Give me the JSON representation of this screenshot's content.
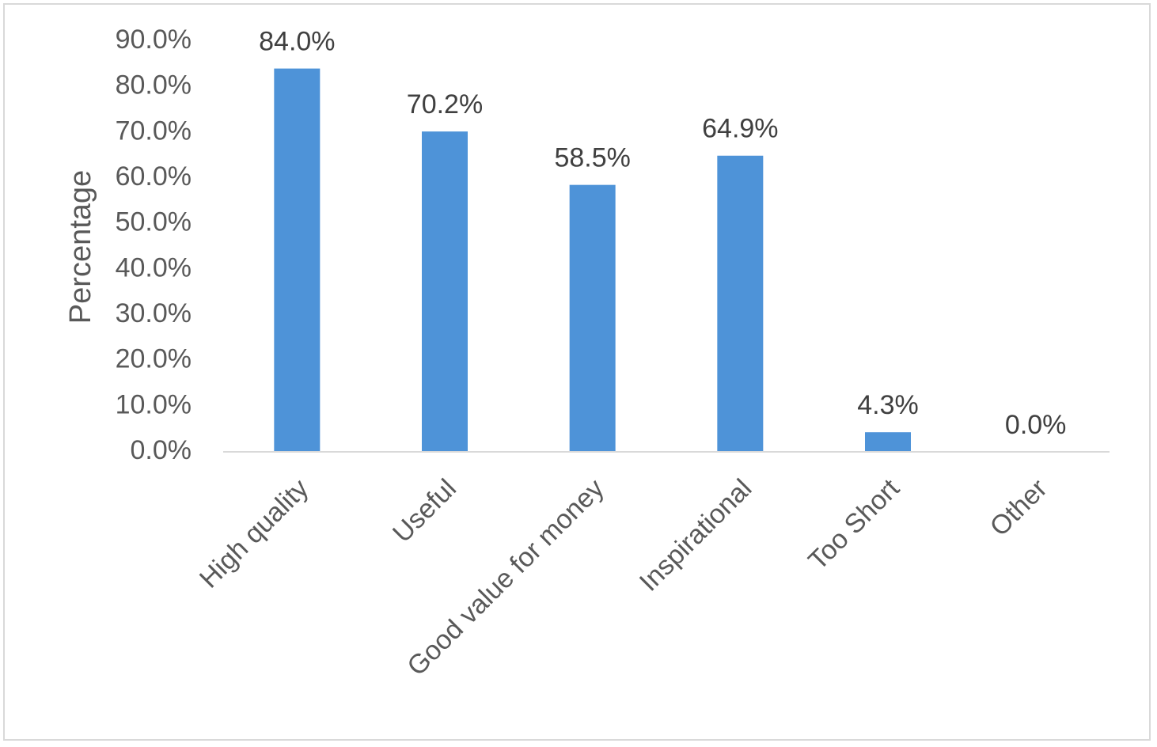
{
  "chart_data": {
    "type": "bar",
    "categories": [
      "High quality",
      "Useful",
      "Good value for money",
      "Inspirational",
      "Too Short",
      "Other"
    ],
    "values": [
      84.0,
      70.2,
      58.5,
      64.9,
      4.3,
      0.0
    ],
    "data_labels": [
      "84.0%",
      "70.2%",
      "58.5%",
      "64.9%",
      "4.3%",
      "0.0%"
    ],
    "xlabel": "",
    "ylabel": "Percentage",
    "ylim": [
      0,
      90
    ],
    "yticks": [
      0,
      10,
      20,
      30,
      40,
      50,
      60,
      70,
      80,
      90
    ],
    "ytick_labels": [
      "0.0%",
      "10.0%",
      "20.0%",
      "30.0%",
      "40.0%",
      "50.0%",
      "60.0%",
      "70.0%",
      "80.0%",
      "90.0%"
    ],
    "grid": false,
    "legend": "none",
    "colors": {
      "bar": "#4e93d8",
      "axis": "#d9d9d9"
    }
  }
}
